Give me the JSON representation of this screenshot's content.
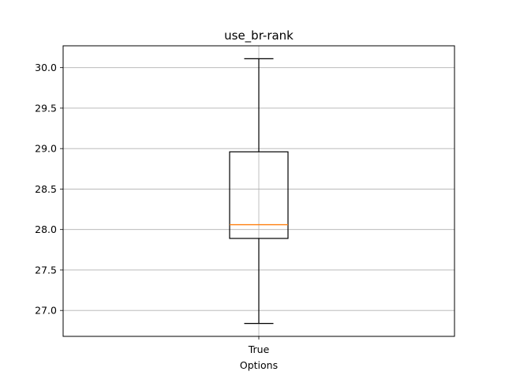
{
  "chart_data": {
    "type": "box",
    "title": "use_br-rank",
    "xlabel": "Options",
    "ylabel": "",
    "categories": [
      "True"
    ],
    "boxes": [
      {
        "category": "True",
        "whisker_low": 26.84,
        "q1": 27.89,
        "median": 28.06,
        "q3": 28.96,
        "whisker_high": 30.11
      }
    ],
    "ylim": [
      26.68,
      30.27
    ],
    "yticks": [
      27.0,
      27.5,
      28.0,
      28.5,
      29.0,
      29.5,
      30.0
    ],
    "ytick_labels": [
      "27.0",
      "27.5",
      "28.0",
      "28.5",
      "29.0",
      "29.5",
      "30.0"
    ],
    "grid": true,
    "colors": {
      "box": "#000000",
      "median": "#ff7f0e",
      "grid": "#b0b0b0"
    }
  }
}
